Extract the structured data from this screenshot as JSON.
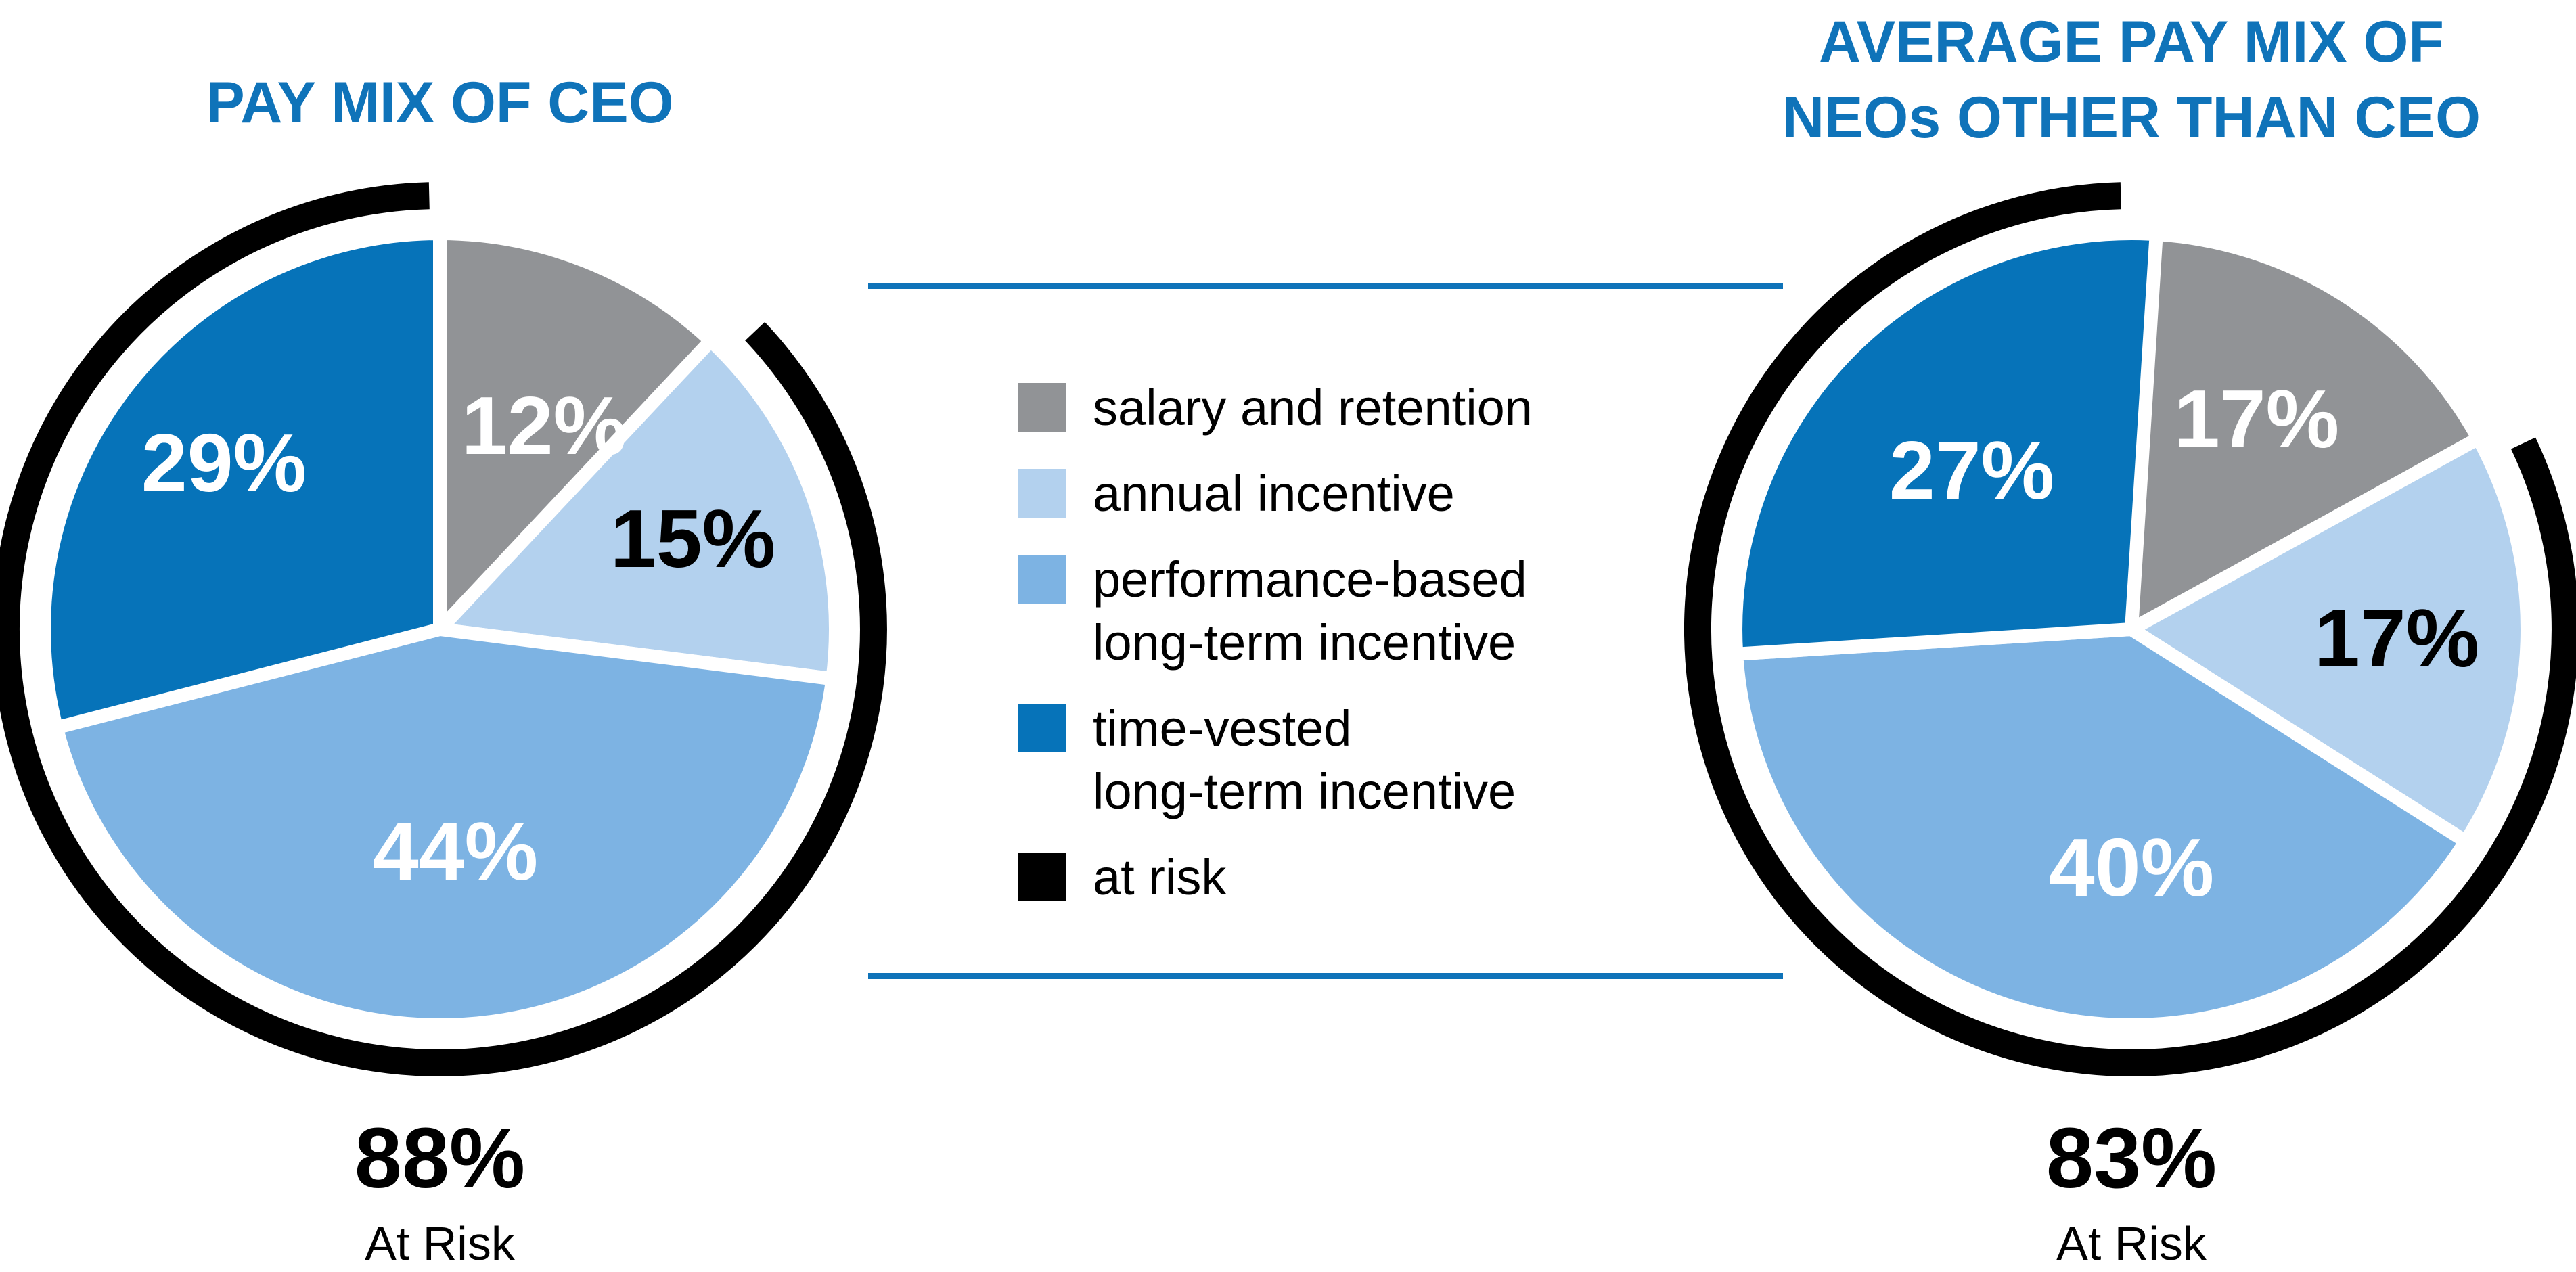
{
  "colors": {
    "accent_blue": "#0f73b9",
    "salary_gray": "#919396",
    "annual_light_blue": "#b3d1ee",
    "performance_mid_blue": "#7db3e3",
    "time_vested_dark_blue": "#0673b9",
    "at_risk_black": "#000000"
  },
  "chart_data": [
    {
      "type": "pie",
      "title": "PAY MIX OF CEO",
      "title_lines": [
        "PAY MIX OF CEO"
      ],
      "start_angle_deg": 0,
      "direction": "clockwise",
      "slices": [
        {
          "label": "salary and retention",
          "value": 12,
          "display": "12%",
          "color": "#919396",
          "label_color": "#ffffff"
        },
        {
          "label": "annual incentive",
          "value": 15,
          "display": "15%",
          "color": "#b3d1ee",
          "label_color": "#000000"
        },
        {
          "label": "performance-based long-term incentive",
          "value": 44,
          "display": "44%",
          "color": "#7db3e3",
          "label_color": "#ffffff"
        },
        {
          "label": "time-vested long-term incentive",
          "value": 29,
          "display": "29%",
          "color": "#0673b9",
          "label_color": "#ffffff"
        }
      ],
      "at_risk_ring": {
        "label": "at risk",
        "percent": 88,
        "color": "#000000",
        "gap_over_slice": "salary and retention"
      },
      "footer": {
        "value": "88%",
        "caption": "At Risk"
      }
    },
    {
      "type": "pie",
      "title": "AVERAGE PAY MIX OF NEOs OTHER THAN CEO",
      "title_lines": [
        "AVERAGE PAY MIX OF",
        "NEOs OTHER THAN CEO"
      ],
      "start_angle_deg": 0,
      "direction": "clockwise",
      "slices": [
        {
          "label": "salary and retention",
          "value": 17,
          "display": "17%",
          "color": "#919396",
          "label_color": "#ffffff"
        },
        {
          "label": "annual incentive",
          "value": 17,
          "display": "17%",
          "color": "#b3d1ee",
          "label_color": "#000000"
        },
        {
          "label": "performance-based long-term incentive",
          "value": 40,
          "display": "40%",
          "color": "#7db3e3",
          "label_color": "#ffffff"
        },
        {
          "label": "time-vested long-term incentive",
          "value": 27,
          "display": "27%",
          "color": "#0673b9",
          "label_color": "#ffffff"
        }
      ],
      "at_risk_ring": {
        "label": "at risk",
        "percent": 83,
        "color": "#000000",
        "gap_over_slice": "salary and retention"
      },
      "footer": {
        "value": "83%",
        "caption": "At Risk"
      }
    }
  ],
  "legend": {
    "items": [
      {
        "label": "salary and retention",
        "lines": [
          "salary and retention"
        ],
        "color": "#919396"
      },
      {
        "label": "annual incentive",
        "lines": [
          "annual incentive"
        ],
        "color": "#b3d1ee"
      },
      {
        "label": "performance-based long-term incentive",
        "lines": [
          "performance-based",
          "long-term incentive"
        ],
        "color": "#7db3e3"
      },
      {
        "label": "time-vested long-term incentive",
        "lines": [
          "time-vested",
          "long-term incentive"
        ],
        "color": "#0673b9"
      },
      {
        "label": "at risk",
        "lines": [
          "at risk"
        ],
        "color": "#000000"
      }
    ]
  }
}
